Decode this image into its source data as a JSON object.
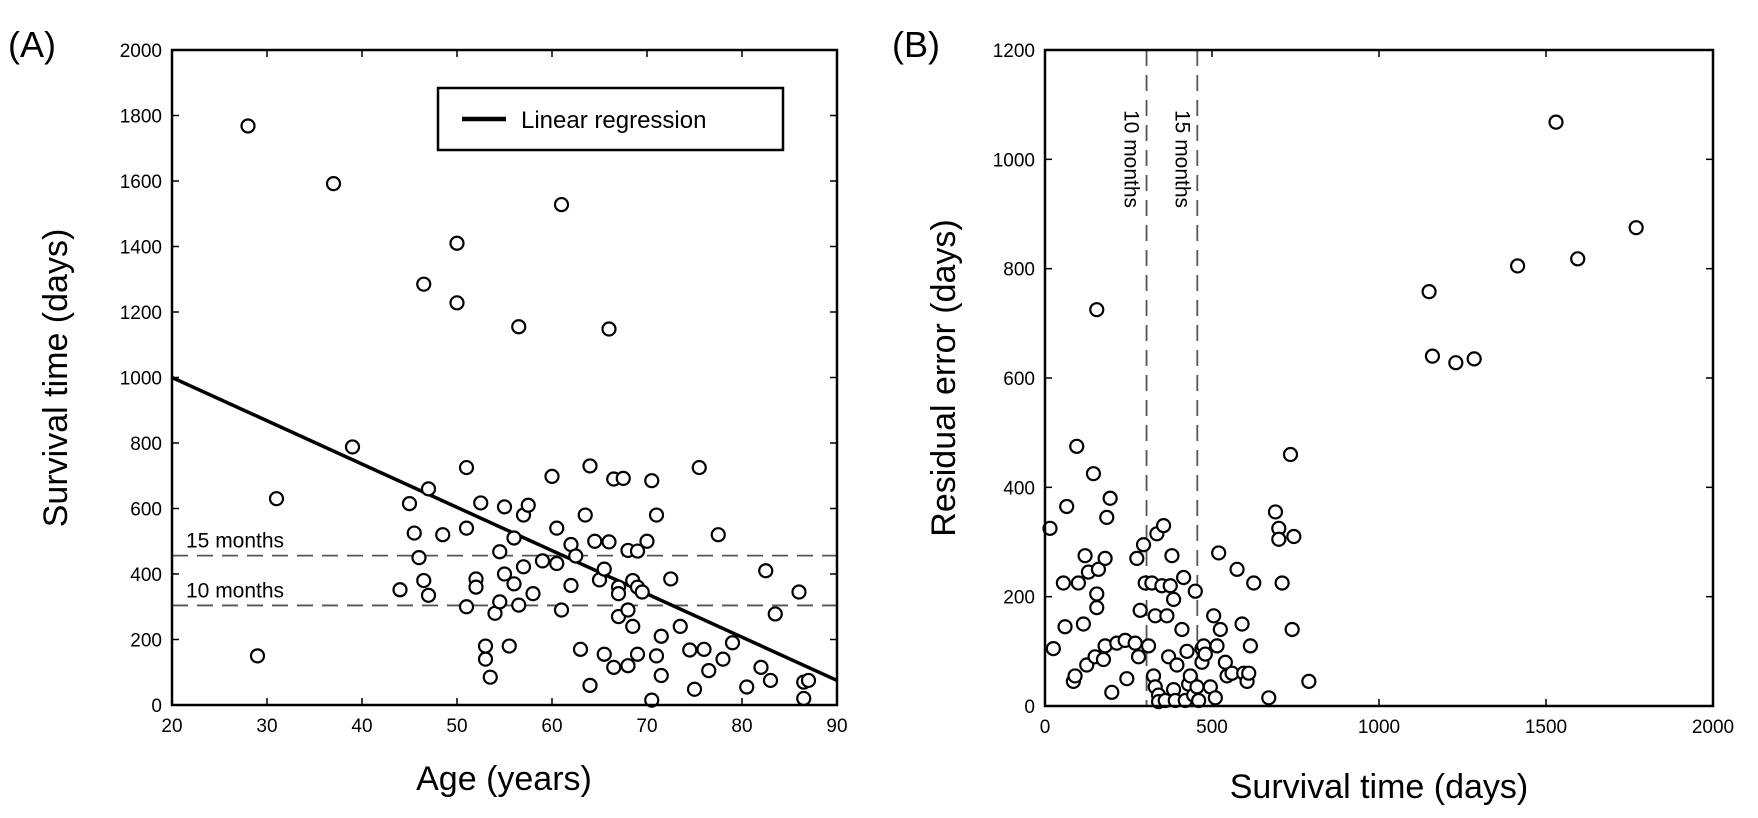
{
  "chart_data": [
    {
      "panel": "(A)",
      "type": "scatter",
      "xlabel": "Age (years)",
      "ylabel": "Survival time (days)",
      "xlim": [
        20,
        90
      ],
      "ylim": [
        0,
        2000
      ],
      "xticks": [
        20,
        30,
        40,
        50,
        60,
        70,
        80,
        90
      ],
      "yticks": [
        0,
        200,
        400,
        600,
        800,
        1000,
        1200,
        1400,
        1600,
        1800,
        2000
      ],
      "legend": {
        "label": "Linear regression",
        "placement": "top-right"
      },
      "regression": {
        "x": [
          20,
          90
        ],
        "y": [
          1000,
          75
        ]
      },
      "reference_lines": [
        {
          "label": "15 months",
          "y": 456
        },
        {
          "label": "10 months",
          "y": 304
        }
      ],
      "points": [
        [
          28,
          1768
        ],
        [
          29,
          150
        ],
        [
          31,
          630
        ],
        [
          37,
          1592
        ],
        [
          39,
          788
        ],
        [
          44,
          352
        ],
        [
          45,
          615
        ],
        [
          45.5,
          525
        ],
        [
          46,
          450
        ],
        [
          46.5,
          1285
        ],
        [
          46.5,
          380
        ],
        [
          47,
          660
        ],
        [
          47,
          335
        ],
        [
          48.5,
          520
        ],
        [
          50,
          1410
        ],
        [
          50,
          1228
        ],
        [
          51,
          725
        ],
        [
          51,
          540
        ],
        [
          51,
          300
        ],
        [
          52,
          385
        ],
        [
          52,
          360
        ],
        [
          52.5,
          617
        ],
        [
          53,
          180
        ],
        [
          53,
          140
        ],
        [
          53.5,
          85
        ],
        [
          54,
          280
        ],
        [
          54.5,
          468
        ],
        [
          54.5,
          315
        ],
        [
          55,
          605
        ],
        [
          55,
          400
        ],
        [
          55.5,
          180
        ],
        [
          56,
          510
        ],
        [
          56,
          370
        ],
        [
          56.5,
          305
        ],
        [
          56.5,
          1155
        ],
        [
          57,
          580
        ],
        [
          57,
          422
        ],
        [
          57.5,
          610
        ],
        [
          58,
          340
        ],
        [
          59,
          440
        ],
        [
          60,
          698
        ],
        [
          60.5,
          540
        ],
        [
          60.5,
          432
        ],
        [
          61,
          1528
        ],
        [
          61,
          290
        ],
        [
          62,
          490
        ],
        [
          62,
          365
        ],
        [
          62.5,
          455
        ],
        [
          63,
          170
        ],
        [
          63.5,
          580
        ],
        [
          64,
          730
        ],
        [
          64,
          60
        ],
        [
          64.5,
          500
        ],
        [
          65,
          382
        ],
        [
          65.5,
          415
        ],
        [
          65.5,
          155
        ],
        [
          66,
          1148
        ],
        [
          66,
          498
        ],
        [
          66.5,
          690
        ],
        [
          66.5,
          115
        ],
        [
          67,
          360
        ],
        [
          67,
          340
        ],
        [
          67,
          270
        ],
        [
          67.5,
          692
        ],
        [
          68,
          472
        ],
        [
          68,
          120
        ],
        [
          68,
          290
        ],
        [
          68.5,
          240
        ],
        [
          68.5,
          380
        ],
        [
          69,
          470
        ],
        [
          69,
          360
        ],
        [
          69,
          155
        ],
        [
          69.5,
          345
        ],
        [
          70,
          500
        ],
        [
          70.5,
          15
        ],
        [
          70.5,
          685
        ],
        [
          71,
          580
        ],
        [
          71,
          150
        ],
        [
          71.5,
          210
        ],
        [
          71.5,
          90
        ],
        [
          72.5,
          385
        ],
        [
          73.5,
          240
        ],
        [
          74.5,
          168
        ],
        [
          75,
          48
        ],
        [
          75.5,
          725
        ],
        [
          76,
          170
        ],
        [
          76.5,
          105
        ],
        [
          77.5,
          520
        ],
        [
          78,
          140
        ],
        [
          79,
          190
        ],
        [
          80.5,
          55
        ],
        [
          82,
          115
        ],
        [
          82.5,
          410
        ],
        [
          83,
          75
        ],
        [
          83.5,
          278
        ],
        [
          86,
          345
        ],
        [
          86.5,
          70
        ],
        [
          86.5,
          20
        ],
        [
          87,
          75
        ]
      ]
    },
    {
      "panel": "(B)",
      "type": "scatter",
      "xlabel": "Survival time (days)",
      "ylabel": "Residual error (days)",
      "xlim": [
        0,
        2000
      ],
      "ylim": [
        0,
        1200
      ],
      "xticks": [
        0,
        500,
        1000,
        1500,
        2000
      ],
      "yticks": [
        0,
        200,
        400,
        600,
        800,
        1000,
        1200
      ],
      "reference_lines": [
        {
          "label": "10 months",
          "x": 304
        },
        {
          "label": "15 months",
          "x": 456
        }
      ],
      "points": [
        [
          15,
          325
        ],
        [
          25,
          105
        ],
        [
          55,
          225
        ],
        [
          60,
          145
        ],
        [
          65,
          365
        ],
        [
          85,
          45
        ],
        [
          90,
          55
        ],
        [
          95,
          475
        ],
        [
          100,
          225
        ],
        [
          115,
          150
        ],
        [
          120,
          275
        ],
        [
          125,
          75
        ],
        [
          130,
          245
        ],
        [
          145,
          425
        ],
        [
          150,
          90
        ],
        [
          155,
          180
        ],
        [
          155,
          205
        ],
        [
          155,
          725
        ],
        [
          160,
          250
        ],
        [
          175,
          85
        ],
        [
          180,
          270
        ],
        [
          180,
          110
        ],
        [
          185,
          345
        ],
        [
          195,
          380
        ],
        [
          200,
          25
        ],
        [
          215,
          115
        ],
        [
          240,
          120
        ],
        [
          245,
          50
        ],
        [
          270,
          115
        ],
        [
          275,
          270
        ],
        [
          280,
          90
        ],
        [
          285,
          175
        ],
        [
          295,
          295
        ],
        [
          300,
          225
        ],
        [
          310,
          110
        ],
        [
          320,
          225
        ],
        [
          325,
          55
        ],
        [
          330,
          165
        ],
        [
          330,
          35
        ],
        [
          335,
          315
        ],
        [
          340,
          20
        ],
        [
          340,
          8
        ],
        [
          350,
          220
        ],
        [
          355,
          330
        ],
        [
          360,
          10
        ],
        [
          365,
          165
        ],
        [
          370,
          90
        ],
        [
          375,
          220
        ],
        [
          380,
          275
        ],
        [
          385,
          195
        ],
        [
          385,
          30
        ],
        [
          390,
          10
        ],
        [
          395,
          75
        ],
        [
          410,
          140
        ],
        [
          415,
          235
        ],
        [
          420,
          10
        ],
        [
          425,
          100
        ],
        [
          430,
          40
        ],
        [
          435,
          55
        ],
        [
          445,
          20
        ],
        [
          450,
          210
        ],
        [
          455,
          35
        ],
        [
          460,
          10
        ],
        [
          470,
          80
        ],
        [
          470,
          105
        ],
        [
          475,
          110
        ],
        [
          480,
          95
        ],
        [
          495,
          35
        ],
        [
          505,
          165
        ],
        [
          510,
          15
        ],
        [
          515,
          110
        ],
        [
          520,
          280
        ],
        [
          525,
          140
        ],
        [
          540,
          80
        ],
        [
          545,
          55
        ],
        [
          560,
          60
        ],
        [
          575,
          250
        ],
        [
          590,
          150
        ],
        [
          595,
          60
        ],
        [
          605,
          45
        ],
        [
          610,
          60
        ],
        [
          615,
          110
        ],
        [
          625,
          225
        ],
        [
          670,
          15
        ],
        [
          690,
          355
        ],
        [
          700,
          325
        ],
        [
          700,
          305
        ],
        [
          710,
          225
        ],
        [
          735,
          460
        ],
        [
          740,
          140
        ],
        [
          745,
          310
        ],
        [
          790,
          45
        ],
        [
          1150,
          758
        ],
        [
          1160,
          640
        ],
        [
          1230,
          628
        ],
        [
          1285,
          635
        ],
        [
          1415,
          805
        ],
        [
          1530,
          1068
        ],
        [
          1595,
          818
        ],
        [
          1770,
          875
        ]
      ]
    }
  ]
}
